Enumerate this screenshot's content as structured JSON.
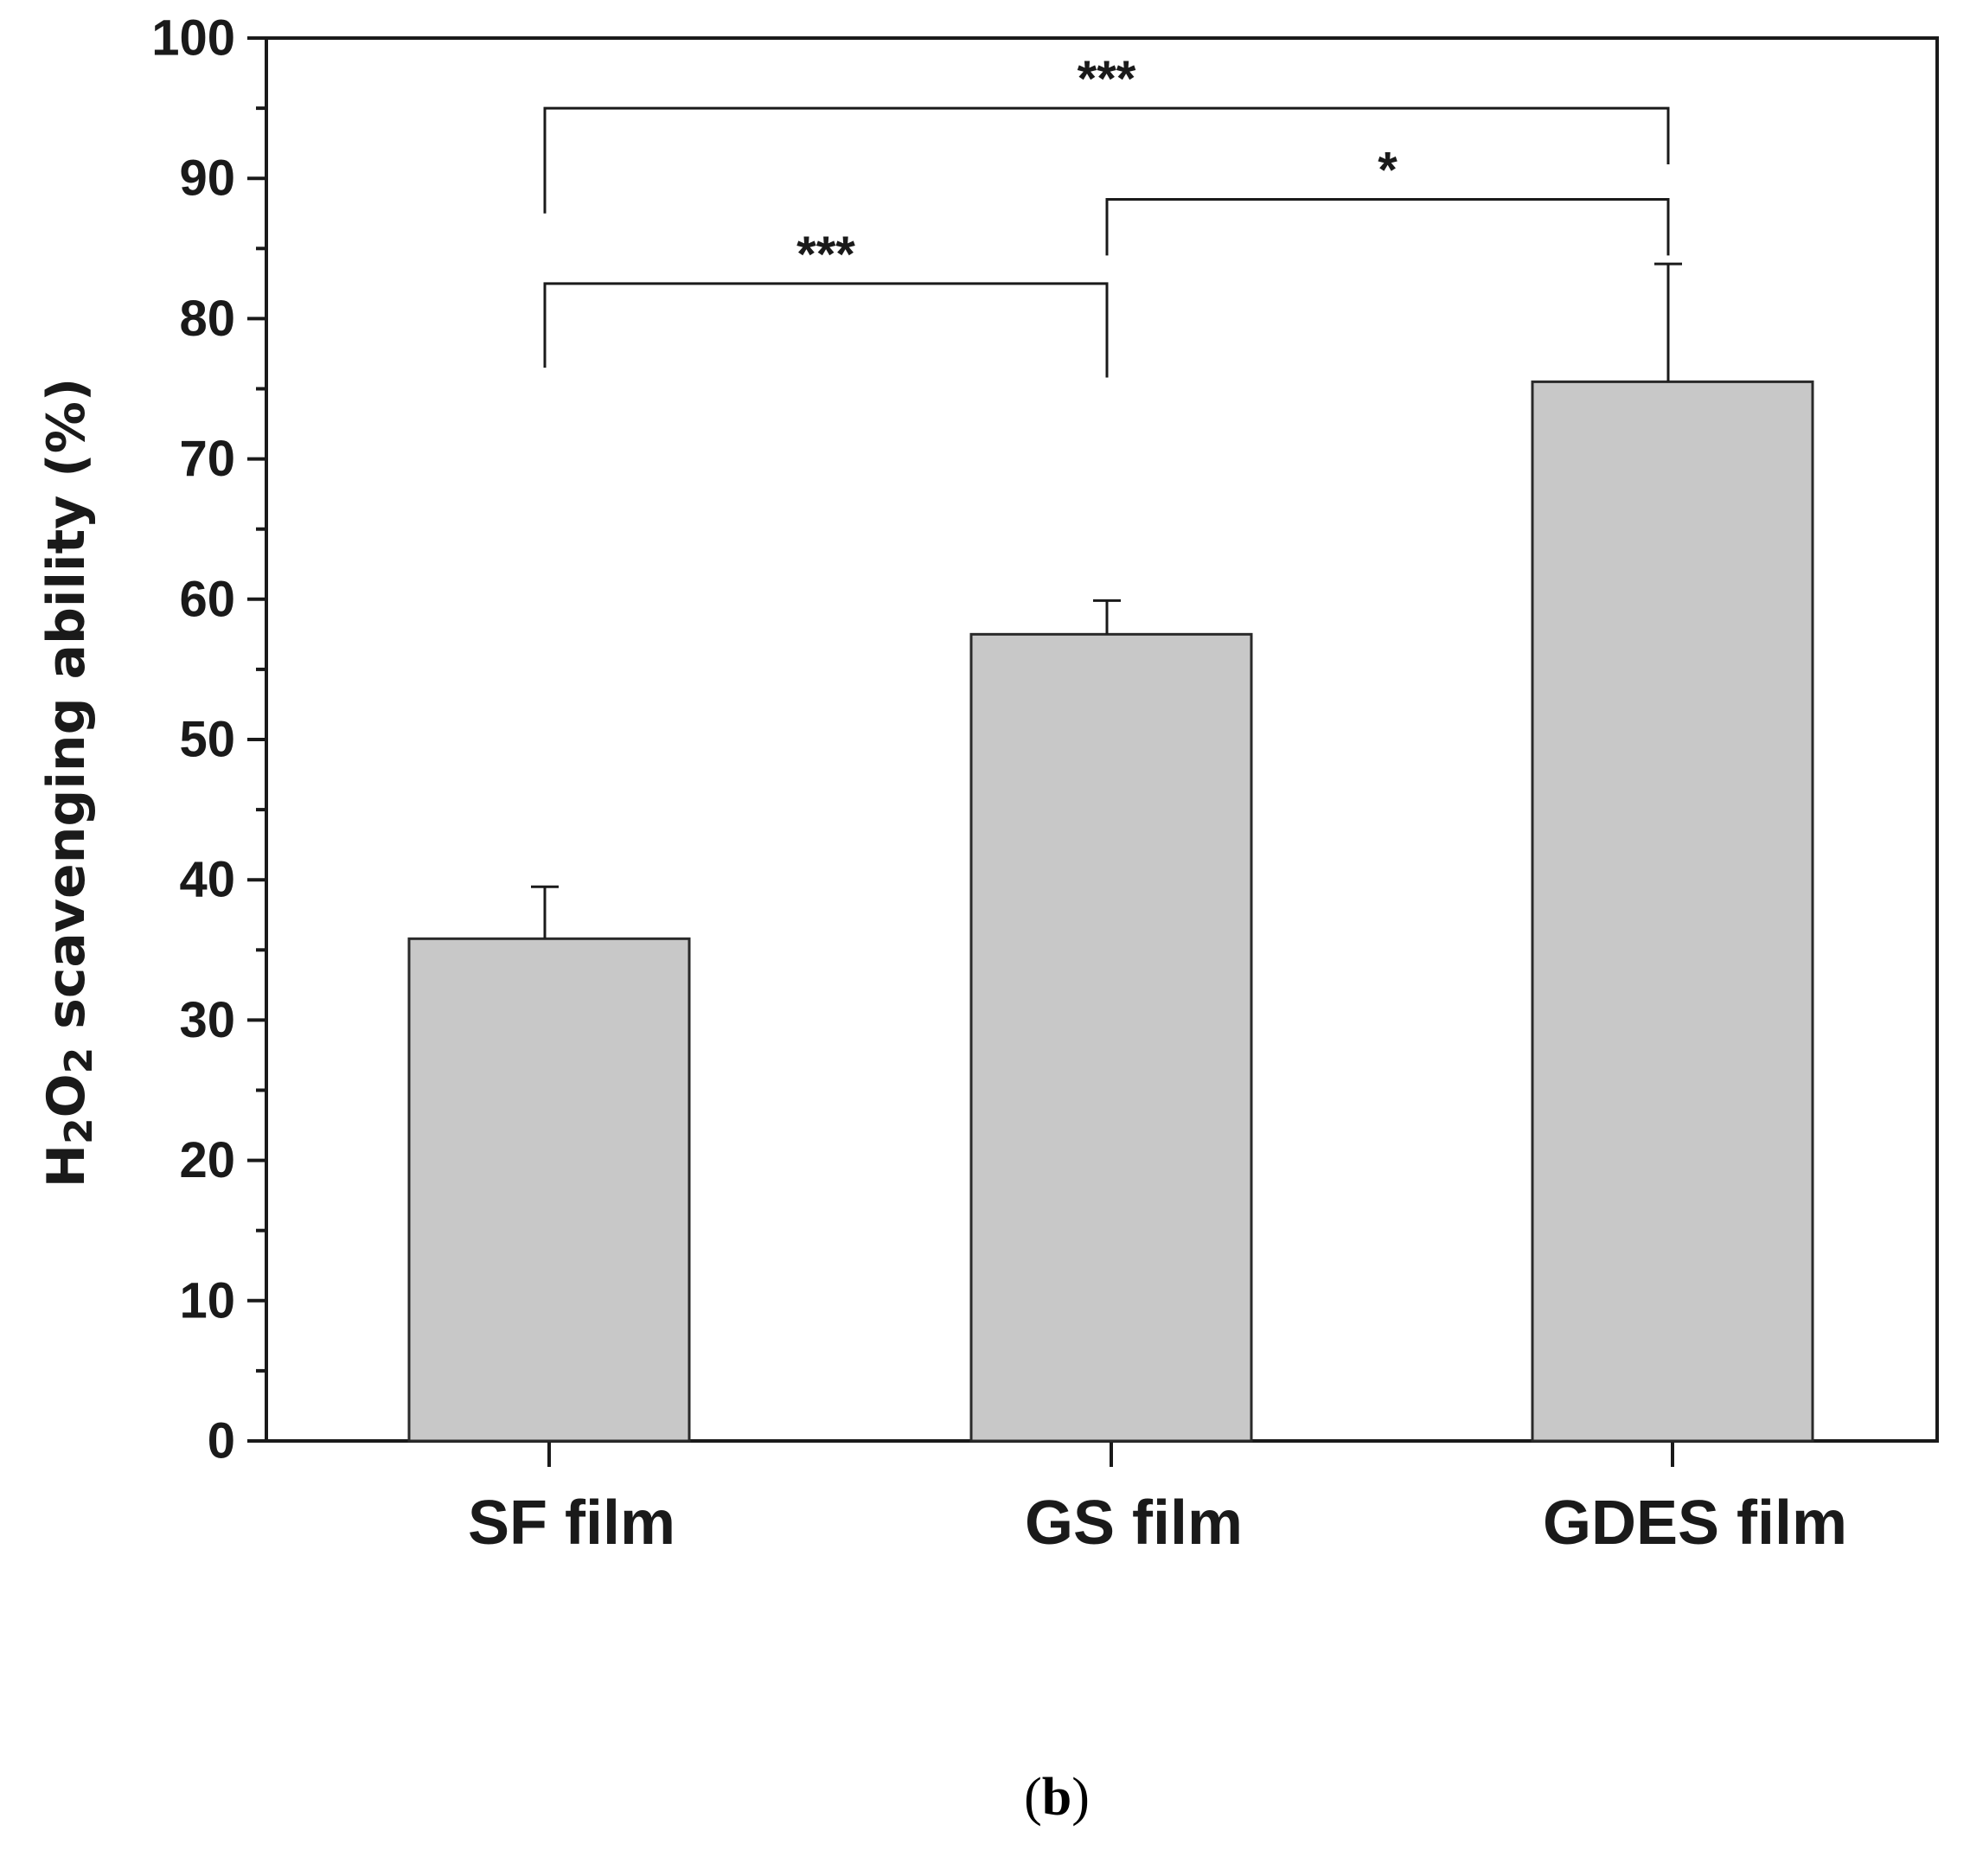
{
  "chart_data": {
    "type": "bar",
    "title": "",
    "xlabel": "",
    "ylabel": {
      "prefix": "H",
      "sub1": "2",
      "mid": "O",
      "sub2": "2",
      "suffix": " scavenging ability (%)"
    },
    "ylim": [
      0,
      100
    ],
    "yticks": [
      "0",
      "10",
      "20",
      "30",
      "40",
      "50",
      "60",
      "70",
      "80",
      "90",
      "100"
    ],
    "categories": [
      "SF film",
      "GS film",
      "GDES film"
    ],
    "values": [
      35.8,
      57.5,
      75.5
    ],
    "errors": [
      3.7,
      2.4,
      8.4
    ],
    "bar_color": "#c8c8c8",
    "significance": [
      {
        "from": 0,
        "to": 1,
        "label": "***",
        "y": 82.5,
        "left_drop_to": 76.5,
        "right_drop_to": 75.8
      },
      {
        "from": 1,
        "to": 2,
        "label": "*",
        "y": 88.5,
        "left_drop_to": 84.5,
        "right_drop_to": 84.5
      },
      {
        "from": 0,
        "to": 2,
        "label": "***",
        "y": 95,
        "left_drop_to": 87.5,
        "right_drop_to": 91
      }
    ],
    "grid": false,
    "legend": "none"
  },
  "panel_label": "(b)"
}
